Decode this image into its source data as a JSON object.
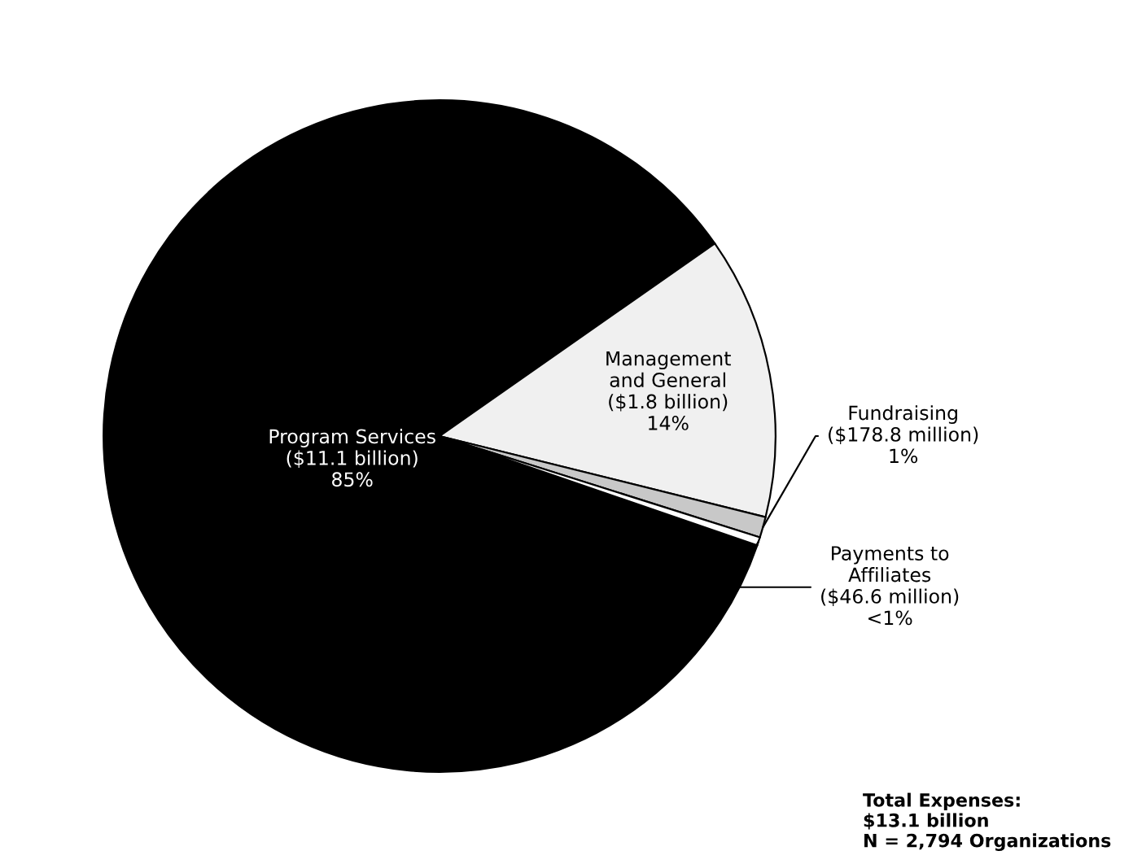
{
  "chart_data": {
    "type": "pie",
    "categories": [
      "Program Services\n($11.1 billion)",
      "Management\nand General\n($1.8 billion)",
      "Fundraising\n($178.8 million)",
      "Payments to\nAffiliates\n($46.6 million)"
    ],
    "values": [
      85,
      13.6,
      1,
      0.4
    ],
    "value_labels": [
      "85%",
      "14%",
      "1%",
      "<1%"
    ],
    "colors": [
      "#000000",
      "#f0f0f0",
      "#c8c8c8",
      "#ffffff"
    ],
    "annotations": [
      "Total Expenses:\n$13.1 billion\nN = 2,794 Organizations"
    ]
  }
}
